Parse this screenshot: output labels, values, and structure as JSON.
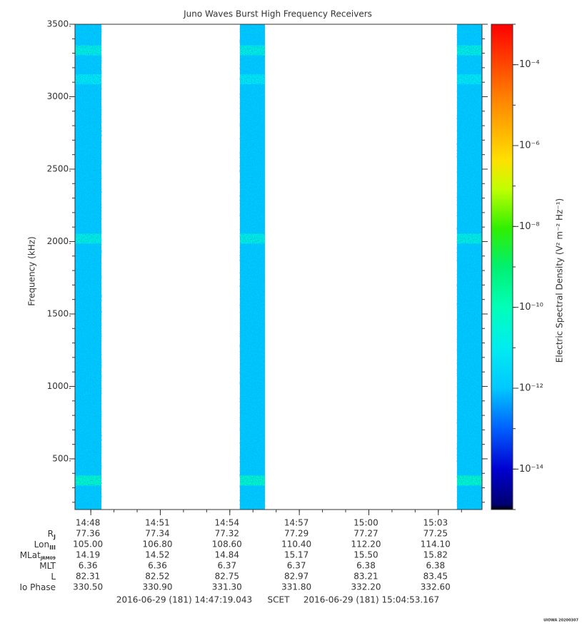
{
  "chart_data": {
    "type": "spectrogram",
    "title": "Juno Waves Burst High Frequency Receivers",
    "ylabel": "Frequency (kHz)",
    "ylim": [
      150,
      3500
    ],
    "yticks": [
      {
        "value": 500,
        "label": "500."
      },
      {
        "value": 1000,
        "label": "1000."
      },
      {
        "value": 1500,
        "label": "1500."
      },
      {
        "value": 2000,
        "label": "2000."
      },
      {
        "value": 2500,
        "label": "2500."
      },
      {
        "value": 3000,
        "label": "3000."
      },
      {
        "value": 3500,
        "label": "3500."
      }
    ],
    "xlim": [
      887.3174,
      904.8861
    ],
    "xticks": [
      {
        "value": 888,
        "label": "14:48"
      },
      {
        "value": 891,
        "label": "14:51"
      },
      {
        "value": 894,
        "label": "14:54"
      },
      {
        "value": 897,
        "label": "14:57"
      },
      {
        "value": 900,
        "label": "15:00"
      },
      {
        "value": 903,
        "label": "15:03"
      }
    ],
    "bursts": [
      {
        "start": 887.3174,
        "end": 888.458,
        "level": 1e-12,
        "bands": [
          {
            "freq": 350,
            "level": 1e-10
          },
          {
            "freq": 2020,
            "level": 3e-11
          },
          {
            "freq": 3120,
            "level": 1e-11
          },
          {
            "freq": 3320,
            "level": 3e-11
          }
        ]
      },
      {
        "start": 894.437,
        "end": 895.516,
        "level": 1e-12,
        "bands": [
          {
            "freq": 350,
            "level": 1e-10
          },
          {
            "freq": 2020,
            "level": 3e-11
          },
          {
            "freq": 3120,
            "level": 1e-11
          },
          {
            "freq": 3320,
            "level": 3e-11
          }
        ]
      },
      {
        "start": 903.807,
        "end": 904.8861,
        "level": 1e-12,
        "bands": [
          {
            "freq": 350,
            "level": 1e-10
          },
          {
            "freq": 2020,
            "level": 3e-11
          },
          {
            "freq": 3120,
            "level": 1e-11
          },
          {
            "freq": 3320,
            "level": 3e-11
          }
        ]
      }
    ],
    "colorbar": {
      "label": "Electric Spectral Density (V² m⁻² Hz⁻¹)",
      "log": true,
      "zlim": [
        1e-15,
        0.001
      ],
      "ticks": [
        {
          "value": 1e-14,
          "label": "10⁻¹⁴"
        },
        {
          "value": 1e-12,
          "label": "10⁻¹²"
        },
        {
          "value": 1e-10,
          "label": "10⁻¹⁰"
        },
        {
          "value": 1e-08,
          "label": "10⁻⁸"
        },
        {
          "value": 1e-06,
          "label": "10⁻⁶"
        },
        {
          "value": 0.0001,
          "label": "10⁻⁴"
        }
      ]
    },
    "ephemeris": [
      {
        "name": "R",
        "sub": "J",
        "values": [
          "77.36",
          "77.34",
          "77.32",
          "77.29",
          "77.27",
          "77.25"
        ]
      },
      {
        "name": "Lon",
        "sub": "III",
        "values": [
          "105.00",
          "106.80",
          "108.60",
          "110.40",
          "112.20",
          "114.10"
        ]
      },
      {
        "name": "MLat",
        "sub": "JRM09",
        "values": [
          "14.19",
          "14.52",
          "14.84",
          "15.17",
          "15.50",
          "15.82"
        ]
      },
      {
        "name": "MLT",
        "values": [
          "6.36",
          "6.36",
          "6.37",
          "6.37",
          "6.38",
          "6.38"
        ]
      },
      {
        "name": "L",
        "values": [
          "82.31",
          "82.52",
          "82.75",
          "82.97",
          "83.21",
          "83.45"
        ]
      },
      {
        "name": "Io Phase",
        "values": [
          "330.50",
          "330.90",
          "331.30",
          "331.80",
          "332.20",
          "332.60"
        ]
      }
    ],
    "start_label": "2016-06-29 (181) 14:47:19.043",
    "time_system": "SCET",
    "end_label": "2016-06-29 (181) 15:04:53.167",
    "footer": "UIOWA 20200307"
  }
}
